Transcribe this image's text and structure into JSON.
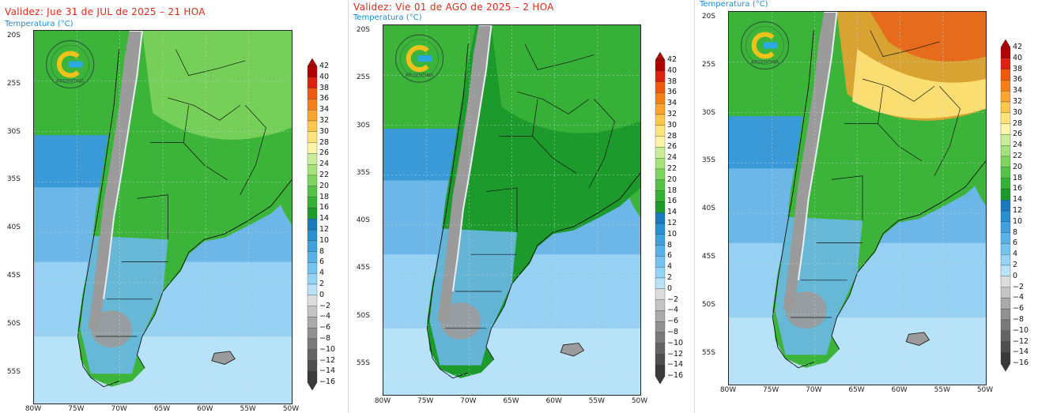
{
  "panels": [
    {
      "validez": "Validez: Jue 31 de JUL de 2025 – 21 HOA",
      "temp_label": "Temperatura (°C)",
      "lat_labels": [
        "20S",
        "25S",
        "30S",
        "35S",
        "40S",
        "45S",
        "50S",
        "55S"
      ],
      "lon_labels": [
        "80W",
        "75W",
        "70W",
        "65W",
        "60W",
        "55W",
        "50W"
      ],
      "logo_icon": "smn-argentina-logo-icon",
      "logo_text": "ARGENTINA",
      "scale": [
        "42",
        "40",
        "38",
        "36",
        "34",
        "32",
        "30",
        "28",
        "26",
        "24",
        "22",
        "20",
        "18",
        "16",
        "14",
        "12",
        "10",
        "8",
        "6",
        "4",
        "2",
        "0",
        "−2",
        "−4",
        "−6",
        "−8",
        "−10",
        "−12",
        "−14",
        "−16"
      ]
    },
    {
      "validez": "Validez: Vie 01 de AGO de 2025 – 2 HOA",
      "temp_label": "Temperatura (°C)",
      "lat_labels": [
        "20S",
        "25S",
        "30S",
        "35S",
        "40S",
        "45S",
        "50S",
        "55S"
      ],
      "lon_labels": [
        "80W",
        "75W",
        "70W",
        "65W",
        "60W",
        "55W",
        "50W"
      ],
      "logo_icon": "smn-argentina-logo-icon",
      "logo_text": "ARGENTINA",
      "scale": [
        "42",
        "40",
        "38",
        "36",
        "34",
        "32",
        "30",
        "28",
        "26",
        "24",
        "22",
        "20",
        "18",
        "16",
        "14",
        "12",
        "10",
        "8",
        "6",
        "4",
        "2",
        "0",
        "−2",
        "−4",
        "−6",
        "−8",
        "−10",
        "−12",
        "−14",
        "−16"
      ]
    },
    {
      "validez": "",
      "temp_label": "Temperatura (°C)",
      "lat_labels": [
        "20S",
        "25S",
        "30S",
        "35S",
        "40S",
        "45S",
        "50S",
        "55S"
      ],
      "lon_labels": [
        "80W",
        "75W",
        "70W",
        "65W",
        "60W",
        "55W",
        "50W"
      ],
      "logo_icon": "smn-argentina-logo-icon",
      "logo_text": "ARGENTINA",
      "scale": [
        "42",
        "40",
        "38",
        "36",
        "34",
        "32",
        "30",
        "28",
        "26",
        "24",
        "22",
        "20",
        "18",
        "16",
        "14",
        "12",
        "10",
        "8",
        "6",
        "4",
        "2",
        "0",
        "−2",
        "−4",
        "−6",
        "−8",
        "−10",
        "−12",
        "−14",
        "−16"
      ]
    }
  ],
  "colors": {
    "scale": [
      "#b00000",
      "#e02010",
      "#f05a10",
      "#f57f17",
      "#f9a530",
      "#fbc84a",
      "#fde47a",
      "#fbf3a8",
      "#c8ec9a",
      "#a6e27c",
      "#7fd45e",
      "#54c245",
      "#35b136",
      "#1c9a2c",
      "#197bbd",
      "#2a8fd0",
      "#3ea1de",
      "#56b2e8",
      "#73c3ef",
      "#95d3f4",
      "#b8e3f8",
      "#dcdcdc",
      "#c4c4c4",
      "#aaaaaa",
      "#919191",
      "#7a7a7a",
      "#646464",
      "#4e4e4e",
      "#3a3a3a"
    ],
    "ocean_deep": "#3a9ad8",
    "ocean_mid": "#6cb7e8",
    "ocean_light": "#96d0f2",
    "ocean_pale": "#b8e2f8",
    "land_green_dark": "#1c9a2c",
    "land_green": "#3cb43a",
    "land_green_light": "#7fd45e",
    "andes_grey": "#9b9b9b",
    "andes_white": "#e9eef2",
    "warm_yellow": "#fde47a",
    "warm_orange": "#f5a030",
    "warm_red": "#e8621a"
  }
}
